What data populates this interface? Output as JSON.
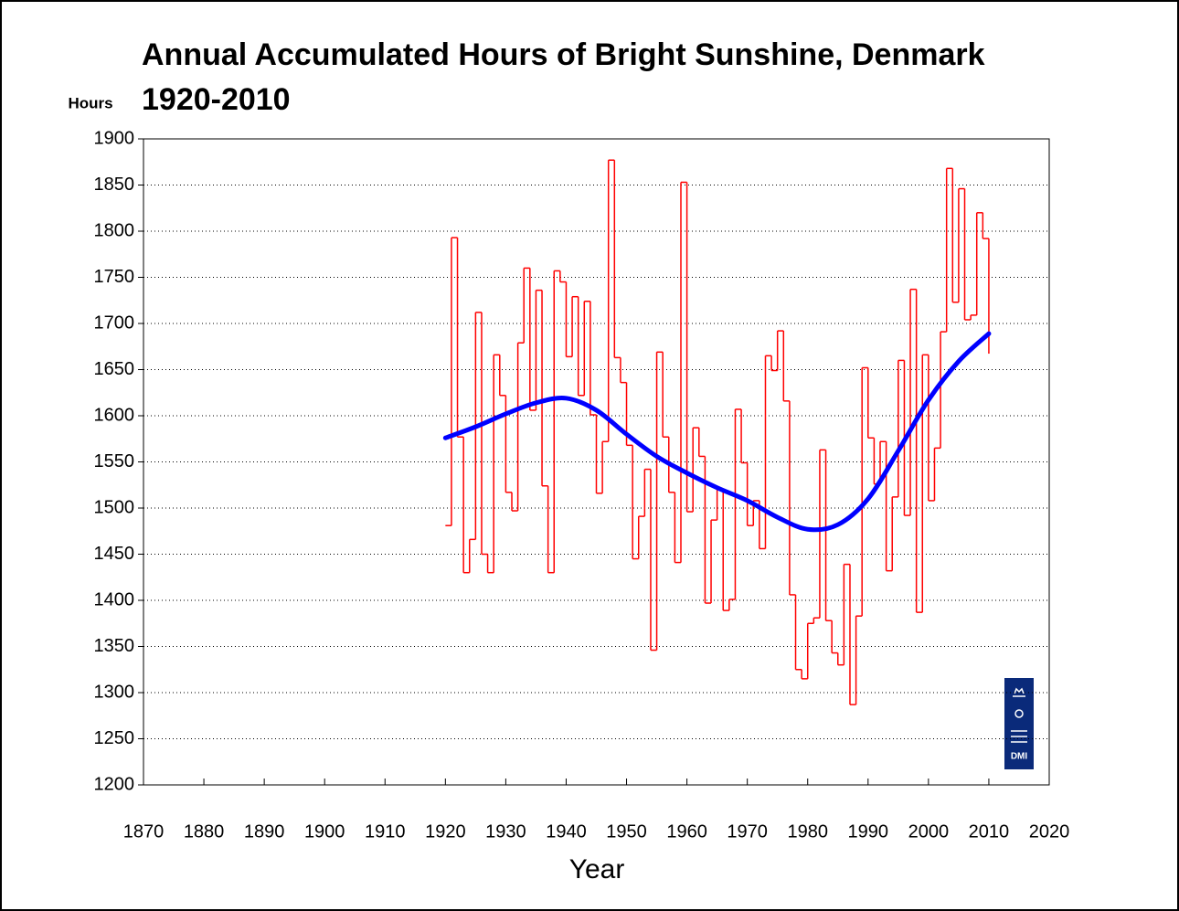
{
  "chart_data": {
    "type": "line",
    "title": "Annual Accumulated Hours of Bright Sunshine, Denmark",
    "subtitle": "1920-2010",
    "y_label": "Hours",
    "x_label": "Year",
    "logo_text": "DMI",
    "xlim": [
      1870,
      2020
    ],
    "xticks": [
      1870,
      1880,
      1890,
      1900,
      1910,
      1920,
      1930,
      1940,
      1950,
      1960,
      1970,
      1980,
      1990,
      2000,
      2010,
      2020
    ],
    "ylim": [
      1200,
      1900
    ],
    "yticks": [
      1200,
      1250,
      1300,
      1350,
      1400,
      1450,
      1500,
      1550,
      1600,
      1650,
      1700,
      1750,
      1800,
      1850,
      1900
    ],
    "grid": true,
    "series": [
      {
        "color": "#ff0000",
        "drawstyle": "steps-post",
        "x": [
          1920,
          1921,
          1922,
          1923,
          1924,
          1925,
          1926,
          1927,
          1928,
          1929,
          1930,
          1931,
          1932,
          1933,
          1934,
          1935,
          1936,
          1937,
          1938,
          1939,
          1940,
          1941,
          1942,
          1943,
          1944,
          1945,
          1946,
          1947,
          1948,
          1949,
          1950,
          1951,
          1952,
          1953,
          1954,
          1955,
          1956,
          1957,
          1958,
          1959,
          1960,
          1961,
          1962,
          1963,
          1964,
          1965,
          1966,
          1967,
          1968,
          1969,
          1970,
          1971,
          1972,
          1973,
          1974,
          1975,
          1976,
          1977,
          1978,
          1979,
          1980,
          1981,
          1982,
          1983,
          1984,
          1985,
          1986,
          1987,
          1988,
          1989,
          1990,
          1991,
          1992,
          1993,
          1994,
          1995,
          1996,
          1997,
          1998,
          1999,
          2000,
          2001,
          2002,
          2003,
          2004,
          2005,
          2006,
          2007,
          2008,
          2009,
          2010
        ],
        "values": [
          1481,
          1793,
          1577,
          1430,
          1466,
          1712,
          1450,
          1430,
          1666,
          1622,
          1517,
          1497,
          1679,
          1760,
          1606,
          1736,
          1524,
          1430,
          1757,
          1745,
          1664,
          1729,
          1622,
          1724,
          1601,
          1516,
          1572,
          1877,
          1663,
          1636,
          1568,
          1445,
          1491,
          1542,
          1346,
          1669,
          1577,
          1517,
          1441,
          1853,
          1496,
          1587,
          1556,
          1397,
          1487,
          1520,
          1389,
          1401,
          1607,
          1549,
          1481,
          1508,
          1456,
          1665,
          1649,
          1692,
          1616,
          1406,
          1325,
          1315,
          1375,
          1381,
          1563,
          1378,
          1343,
          1330,
          1439,
          1287,
          1383,
          1652,
          1576,
          1526,
          1572,
          1432,
          1512,
          1660,
          1492,
          1737,
          1387,
          1666,
          1508,
          1565,
          1691,
          1868,
          1723,
          1846,
          1704,
          1709,
          1820,
          1792,
          1668
        ]
      },
      {
        "color": "#0000ff",
        "drawstyle": "smooth",
        "x": [
          1920,
          1925,
          1930,
          1935,
          1940,
          1945,
          1950,
          1955,
          1960,
          1965,
          1970,
          1975,
          1980,
          1985,
          1990,
          1995,
          2000,
          2005,
          2010
        ],
        "values": [
          1576,
          1588,
          1602,
          1614,
          1619,
          1606,
          1580,
          1556,
          1538,
          1522,
          1508,
          1490,
          1477,
          1482,
          1510,
          1562,
          1617,
          1659,
          1689
        ]
      }
    ]
  }
}
